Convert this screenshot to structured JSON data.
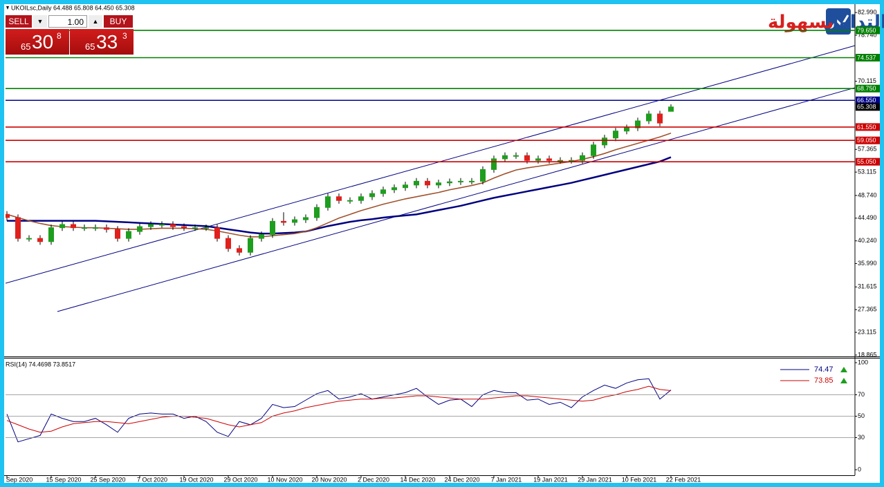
{
  "chart_data": [
    {
      "type": "candlestick",
      "title": "UKOILsc,Daily 64.488 65.808 64.450 65.308",
      "categories": [
        "Sep 2020",
        null,
        null,
        null,
        "15 Sep 2020",
        null,
        null,
        null,
        "25 Sep 2020",
        null,
        null,
        null,
        "7 Oct 2020",
        null,
        null,
        null,
        "19 Oct 2020",
        null,
        null,
        null,
        "29 Oct 2020",
        null,
        null,
        null,
        "10 Nov 2020",
        null,
        null,
        null,
        "20 Nov 2020",
        null,
        null,
        null,
        "2 Dec 2020",
        null,
        null,
        null,
        "14 Dec 2020",
        null,
        null,
        null,
        "24 Dec 2020",
        null,
        null,
        null,
        "7 Jan 2021",
        null,
        null,
        null,
        "19 Jan 2021",
        null,
        null,
        null,
        "29 Jan 2021",
        null,
        null,
        null,
        "10 Feb 2021",
        null,
        null,
        null,
        "22 Feb 2021"
      ],
      "open": [
        45.2,
        44.6,
        40.7,
        40.7,
        40.1,
        42.7,
        43.3,
        42.7,
        42.7,
        42.7,
        42.4,
        40.7,
        42.0,
        42.9,
        43.3,
        43.3,
        42.9,
        42.7,
        42.7,
        42.7,
        40.7,
        38.8,
        38.1,
        40.7,
        41.4,
        43.9,
        43.7,
        44.2,
        44.6,
        46.5,
        48.5,
        47.8,
        47.8,
        48.5,
        49.1,
        49.8,
        50.2,
        50.7,
        51.4,
        50.7,
        51.1,
        51.3,
        51.4,
        51.4,
        53.6,
        55.6,
        56.2,
        56.2,
        55.3,
        55.6,
        55.3,
        55.3,
        55.3,
        56.2,
        58.2,
        59.5,
        60.8,
        61.4,
        62.7,
        64.0,
        64.488
      ],
      "high": [
        45.8,
        45.2,
        41.3,
        41.3,
        43.3,
        43.9,
        43.9,
        43.3,
        43.3,
        43.3,
        43.0,
        42.6,
        43.5,
        43.9,
        43.9,
        43.9,
        43.5,
        43.3,
        43.3,
        43.3,
        41.3,
        39.4,
        41.3,
        42.0,
        44.5,
        45.6,
        44.8,
        45.2,
        47.1,
        49.1,
        49.1,
        48.4,
        49.1,
        49.7,
        50.4,
        50.8,
        51.3,
        52.0,
        52.0,
        51.7,
        51.9,
        52.0,
        52.0,
        54.2,
        56.2,
        56.8,
        56.8,
        56.8,
        56.2,
        56.2,
        55.9,
        55.9,
        56.8,
        58.8,
        60.1,
        61.4,
        62.0,
        63.3,
        64.6,
        64.6,
        65.808
      ],
      "low": [
        44.0,
        40.1,
        40.1,
        39.5,
        39.5,
        42.1,
        42.1,
        42.1,
        42.1,
        41.8,
        40.1,
        40.1,
        41.4,
        42.3,
        42.7,
        42.3,
        42.1,
        42.1,
        42.1,
        40.1,
        38.2,
        37.5,
        37.5,
        40.1,
        40.8,
        43.1,
        43.1,
        43.6,
        44.0,
        45.9,
        47.2,
        47.2,
        47.2,
        47.9,
        48.5,
        49.2,
        49.6,
        50.1,
        50.1,
        50.1,
        50.5,
        50.7,
        50.8,
        50.8,
        53.0,
        55.0,
        55.6,
        54.7,
        54.7,
        54.7,
        54.7,
        54.7,
        54.7,
        55.6,
        57.6,
        58.9,
        60.2,
        60.8,
        62.1,
        61.7,
        64.45
      ],
      "close": [
        44.6,
        40.7,
        40.7,
        40.1,
        42.7,
        43.3,
        42.7,
        42.7,
        42.7,
        42.4,
        40.7,
        42.0,
        42.9,
        43.3,
        43.3,
        42.9,
        42.7,
        42.7,
        42.7,
        40.7,
        38.8,
        38.1,
        40.7,
        41.4,
        43.9,
        43.7,
        44.2,
        44.6,
        46.5,
        48.5,
        47.8,
        47.8,
        48.5,
        49.1,
        49.8,
        50.2,
        50.7,
        51.4,
        50.7,
        51.1,
        51.3,
        51.4,
        51.4,
        53.6,
        55.6,
        56.2,
        56.2,
        55.3,
        55.6,
        55.3,
        55.3,
        55.3,
        56.2,
        58.2,
        59.5,
        60.8,
        61.4,
        62.7,
        64.0,
        62.3,
        65.308
      ],
      "up_color": "#1e9e1e",
      "down_color": "#e0201c",
      "lines": [
        {
          "color": "#000080",
          "width": 2.5,
          "values": [
            44.0,
            44.0,
            44.0,
            44.0,
            44.0,
            44.0,
            44.0,
            44.0,
            44.0,
            43.9,
            43.8,
            43.7,
            43.6,
            43.5,
            43.4,
            43.3,
            43.2,
            43.1,
            43.0,
            42.7,
            42.4,
            42.1,
            41.8,
            41.6,
            41.6,
            41.7,
            41.8,
            42.0,
            42.5,
            43.0,
            43.4,
            43.8,
            44.1,
            44.3,
            44.6,
            44.8,
            45.0,
            45.2,
            45.6,
            46.0,
            46.4,
            46.8,
            47.3,
            47.8,
            48.3,
            48.7,
            49.1,
            49.5,
            49.9,
            50.3,
            50.7,
            51.1,
            51.6,
            52.1,
            52.6,
            53.1,
            53.6,
            54.1,
            54.6,
            55.1,
            55.9
          ]
        },
        {
          "color": "#a0522d",
          "width": 1.6,
          "values": [
            45.2,
            44.6,
            44.0,
            43.5,
            43.1,
            42.9,
            42.8,
            42.7,
            42.7,
            42.6,
            42.5,
            42.4,
            42.4,
            42.5,
            42.6,
            42.6,
            42.6,
            42.5,
            42.4,
            42.1,
            41.7,
            41.3,
            41.0,
            41.0,
            41.2,
            41.4,
            41.6,
            42.0,
            42.7,
            43.6,
            44.5,
            45.2,
            45.9,
            46.5,
            47.1,
            47.6,
            48.1,
            48.5,
            48.9,
            49.3,
            49.8,
            50.2,
            50.6,
            51.1,
            52.0,
            52.8,
            53.5,
            53.9,
            54.2,
            54.5,
            54.8,
            55.1,
            55.5,
            56.0,
            56.6,
            57.3,
            57.9,
            58.5,
            59.1,
            59.7,
            60.4
          ]
        }
      ],
      "levels": [
        {
          "value": 79.65,
          "label": "79.650",
          "color": "#008000"
        },
        {
          "value": 74.537,
          "label": "74.537",
          "color": "#008000"
        },
        {
          "value": 68.75,
          "label": "68.750",
          "color": "#008000"
        },
        {
          "value": 66.55,
          "label": "66.550",
          "color": "#00008b"
        },
        {
          "value": 61.55,
          "label": "61.550",
          "color": "#cc0000"
        },
        {
          "value": 59.05,
          "label": "59.050",
          "color": "#cc0000"
        },
        {
          "value": 55.05,
          "label": "55.050",
          "color": "#cc0000"
        }
      ],
      "current": {
        "value": 65.308,
        "label": "65.308",
        "color": "#000000"
      },
      "trendlines": [
        {
          "color": "#000080",
          "x": [
            -0.125,
            76.6
          ],
          "y": [
            32.31,
            76.78
          ]
        },
        {
          "color": "#000080",
          "x": [
            4.56,
            76.6
          ],
          "y": [
            27.01,
            68.9
          ]
        }
      ],
      "ylim": [
        18.6,
        84.3
      ],
      "yticks": [
        {
          "value": 82.99,
          "label": "82.990"
        },
        {
          "value": 78.74,
          "label": "78.740"
        },
        {
          "value": 70.115,
          "label": "70.115"
        },
        {
          "value": 57.365,
          "label": "57.365"
        },
        {
          "value": 53.115,
          "label": "53.115"
        },
        {
          "value": 48.74,
          "label": "48.740"
        },
        {
          "value": 44.49,
          "label": "44.490"
        },
        {
          "value": 40.24,
          "label": "40.240"
        },
        {
          "value": 35.99,
          "label": "35.990"
        },
        {
          "value": 31.615,
          "label": "31.615"
        },
        {
          "value": 27.365,
          "label": "27.365"
        },
        {
          "value": 23.115,
          "label": "23.115"
        },
        {
          "value": 18.865,
          "label": "18.865"
        }
      ]
    },
    {
      "type": "line",
      "title": "RSI(14) 74.4698 73.8517",
      "series": [
        {
          "color": "#000080",
          "legend_value": 74.47,
          "values": [
            52,
            26,
            29,
            32,
            52,
            48,
            45,
            45,
            48,
            42,
            35,
            48,
            52,
            53,
            52,
            52,
            48,
            50,
            45,
            35,
            31,
            45,
            42,
            48,
            61,
            58,
            59,
            65,
            71,
            74,
            66,
            68,
            71,
            66,
            68,
            70,
            72,
            76,
            68,
            61,
            65,
            66,
            59,
            70,
            74,
            72,
            72,
            65,
            66,
            61,
            63,
            58,
            68,
            74,
            79,
            76,
            81,
            84,
            85,
            66,
            74.47
          ]
        },
        {
          "color": "#cc0000",
          "legend_value": 73.85,
          "values": [
            46,
            42,
            38,
            35,
            36,
            40,
            43,
            44,
            45,
            45,
            44,
            43,
            45,
            47,
            49,
            50,
            50,
            49,
            48,
            45,
            42,
            40,
            42,
            44,
            50,
            53,
            55,
            58,
            60,
            62,
            64,
            65,
            66,
            66,
            67,
            67,
            68,
            69,
            69,
            68,
            67,
            66,
            66,
            66,
            67,
            68,
            69,
            69,
            68,
            67,
            66,
            65,
            64,
            65,
            68,
            70,
            73,
            75,
            78,
            75,
            73.85
          ]
        }
      ],
      "ylim": [
        0,
        100
      ],
      "yticks": [
        100,
        70,
        50,
        30,
        0
      ],
      "grid": true,
      "legend_marker_color": "#1e9e1e"
    }
  ],
  "trade_panel": {
    "sell": "SELL",
    "buy": "BUY",
    "lot": "1.00",
    "sell_price": {
      "small": "65",
      "big": "30",
      "sup": "8"
    },
    "buy_price": {
      "small": "65",
      "big": "33",
      "sup": "3"
    }
  },
  "logo": {
    "text_blue": "التداول",
    "text_red": "بسهولة"
  }
}
